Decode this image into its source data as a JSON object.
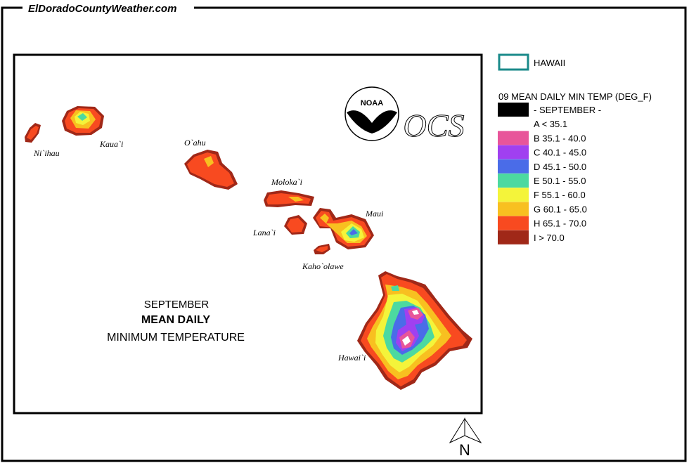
{
  "site": "ElDoradoCountyWeather.com",
  "map": {
    "islands": [
      "Ni`ihau",
      "Kaua`i",
      "O`ahu",
      "Moloka`i",
      "Lana`i",
      "Maui",
      "Kaho`olawe",
      "Hawai`i"
    ],
    "title": [
      "SEPTEMBER",
      "MEAN DAILY",
      "MINIMUM TEMPERATURE"
    ],
    "logos": [
      "NOAA",
      "OCS"
    ],
    "north": "N"
  },
  "legend": {
    "region": "HAWAII",
    "title": "09 MEAN DAILY MIN TEMP (DEG_F)",
    "entries": [
      {
        "label": "- SEPTEMBER -",
        "color": "#000000"
      },
      {
        "label": "A < 35.1",
        "color": "#ffffff"
      },
      {
        "label": "B 35.1 - 40.0",
        "color": "#e8559a"
      },
      {
        "label": "C 40.1 - 45.0",
        "color": "#a040f0"
      },
      {
        "label": "D 45.1 - 50.0",
        "color": "#4a6ce8"
      },
      {
        "label": "E 50.1 - 55.0",
        "color": "#4cd9a0"
      },
      {
        "label": "F 55.1 - 60.0",
        "color": "#f4f43a"
      },
      {
        "label": "G 60.1 - 65.0",
        "color": "#f8c020"
      },
      {
        "label": "H 65.1 - 70.0",
        "color": "#f84a20"
      },
      {
        "label": "I > 70.0",
        "color": "#a02818"
      }
    ]
  }
}
